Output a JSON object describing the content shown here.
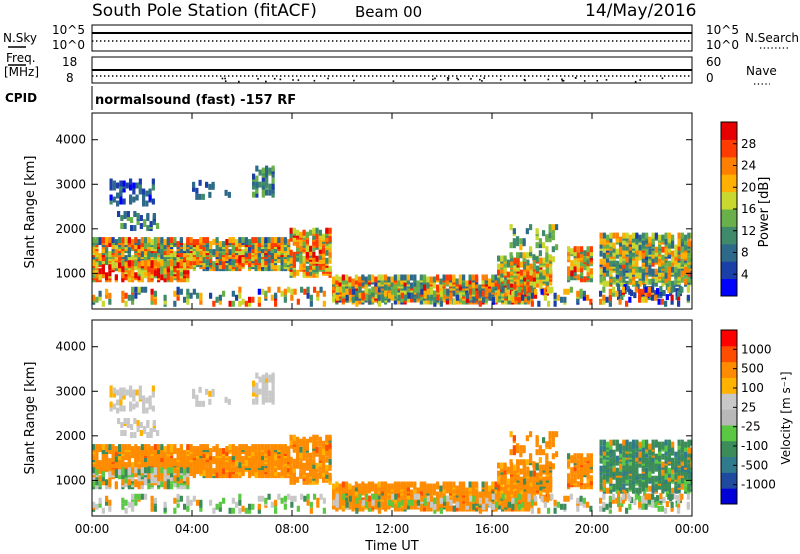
{
  "header": {
    "station": "South Pole Station (fitACF)",
    "beam": "Beam 00",
    "date": "14/May/2016"
  },
  "params": {
    "nsky_label": "N.Sky",
    "nsearch_label": "N.Search",
    "freq_label": "Freq.",
    "freq_unit": "[MHz]",
    "nave_label": "Nave",
    "cpid_label": "CPID",
    "cpid_value": "normalsound (fast) -157 RF",
    "noise_ticks": {
      "top": "10^5",
      "bottom": "10^0"
    },
    "freq_ticks": {
      "top": "18",
      "bottom": "8"
    },
    "nave_ticks": {
      "top": "60",
      "bottom": "0"
    }
  },
  "colors": {
    "power": [
      "#0000ff",
      "#1a3fa6",
      "#2d6a8a",
      "#3e8a6a",
      "#6ab04a",
      "#c8d82e",
      "#ffb000",
      "#ff7f00",
      "#ff3b00",
      "#e60000"
    ],
    "velocity": [
      "#ff0000",
      "#ff4d00",
      "#ff8c00",
      "#ffb200",
      "#c8c8c8",
      "#b8b8b8",
      "#5ac842",
      "#3c8c5a",
      "#2f7a8c",
      "#1e4aa0",
      "#0000d8"
    ]
  },
  "chart_data": [
    {
      "type": "heatmap",
      "name": "power",
      "ylabel": "Slant Range [km]",
      "yticks": [
        "1000",
        "2000",
        "3000",
        "4000"
      ],
      "ylim": [
        200,
        4600
      ],
      "xlim": [
        0,
        24
      ],
      "colorbar_label": "Power [dB]",
      "colorbar_ticks": [
        "4",
        "8",
        "12",
        "16",
        "20",
        "24",
        "28"
      ],
      "colorbar_range": [
        0,
        32
      ]
    },
    {
      "type": "heatmap",
      "name": "velocity",
      "xlabel": "Time UT",
      "ylabel": "Slant Range [km]",
      "xticks": [
        "00:00",
        "04:00",
        "08:00",
        "12:00",
        "16:00",
        "20:00",
        "00:00"
      ],
      "yticks": [
        "1000",
        "2000",
        "3000",
        "4000"
      ],
      "ylim": [
        200,
        4600
      ],
      "xlim": [
        0,
        24
      ],
      "colorbar_label": "Velocity [m s⁻¹]",
      "colorbar_ticks": [
        "1000",
        "500",
        "100",
        "25",
        "-25",
        "-100",
        "-500",
        "-1000"
      ]
    }
  ]
}
